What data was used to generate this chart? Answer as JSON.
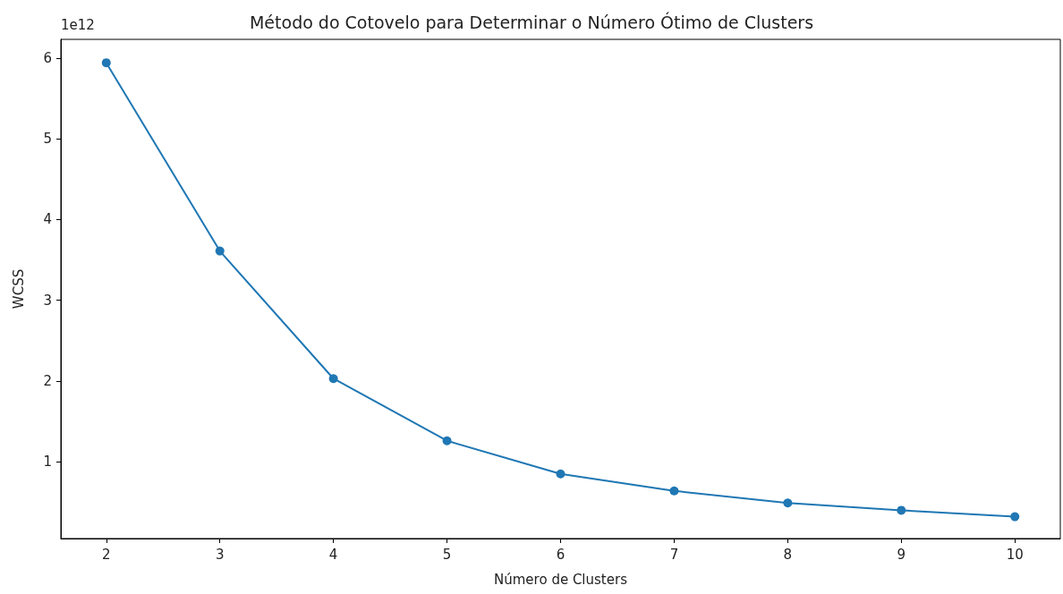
{
  "chart_data": {
    "type": "line",
    "title": "Método do Cotovelo para Determinar o Número Ótimo de Clusters",
    "xlabel": "Número de Clusters",
    "ylabel": "WCSS",
    "annotations": [
      "1e12"
    ],
    "x": [
      2,
      3,
      4,
      5,
      6,
      7,
      8,
      9,
      10
    ],
    "series": [
      {
        "color": "#1f77b4",
        "values": [
          5.94,
          3.61,
          2.03,
          1.26,
          0.85,
          0.64,
          0.49,
          0.4,
          0.32
        ]
      }
    ],
    "xlim": [
      1.6,
      10.4
    ],
    "xticks": [
      2,
      3,
      4,
      5,
      6,
      7,
      8,
      9,
      10
    ],
    "ylim": [
      0.05,
      6.23
    ],
    "yticks": [
      1,
      2,
      3,
      4,
      5,
      6
    ],
    "grid": false,
    "marker": "circle",
    "line_style": "solid"
  }
}
